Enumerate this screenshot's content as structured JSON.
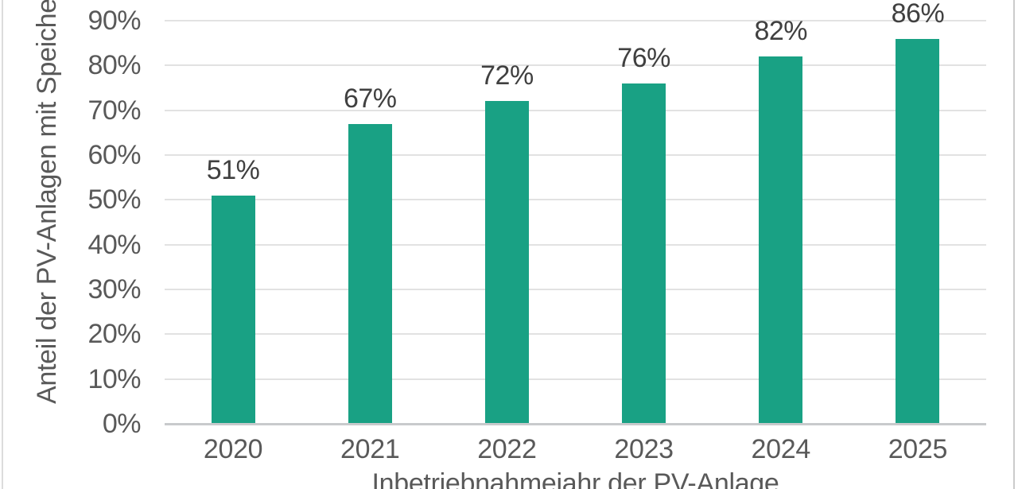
{
  "chart_data": {
    "type": "bar",
    "title": "",
    "xlabel": "Inbetriebnahmejahr der PV-Anlage",
    "ylabel": "Anteil der PV-Anlagen mit Speicher",
    "categories": [
      "2020",
      "2021",
      "2022",
      "2023",
      "2024",
      "2025"
    ],
    "values": [
      51,
      67,
      72,
      76,
      82,
      86
    ],
    "data_labels": [
      "51%",
      "67%",
      "72%",
      "76%",
      "82%",
      "86%"
    ],
    "y_tick_values": [
      0,
      10,
      20,
      30,
      40,
      50,
      60,
      70,
      80,
      90
    ],
    "y_tick_labels": [
      "0%",
      "10%",
      "20%",
      "30%",
      "40%",
      "50%",
      "60%",
      "70%",
      "80%",
      "90%"
    ],
    "ylim": [
      0,
      90
    ],
    "grid": "horizontal",
    "legend": "none",
    "colors": {
      "bar": "#19A184",
      "data_label_text": "#404040",
      "axis_text": "#595959",
      "gridline": "#E2E2E2",
      "axis_line": "#C8CACC"
    }
  }
}
